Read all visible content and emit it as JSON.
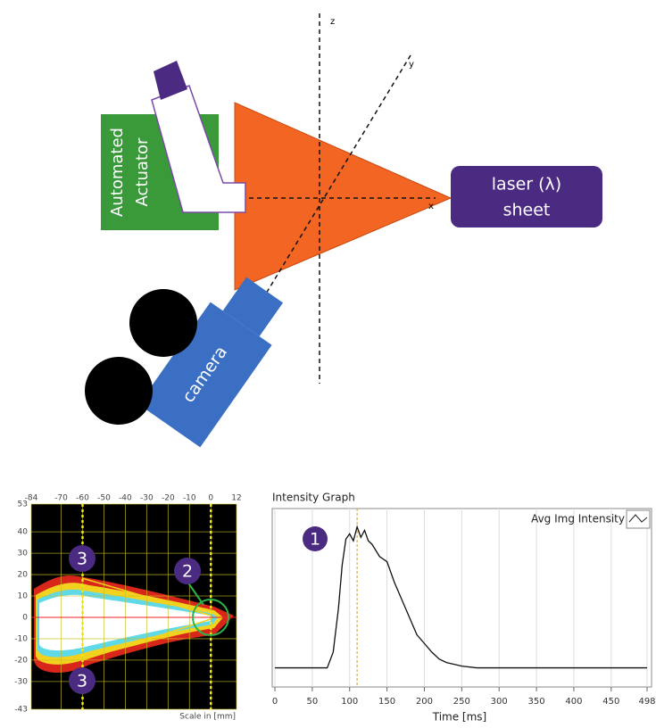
{
  "diagram": {
    "axes": {
      "z": "z",
      "y": "y",
      "x": "x"
    },
    "laser": [
      "laser (λ)",
      "sheet"
    ],
    "actuator": [
      "Automated",
      "Actuator"
    ],
    "camera": "camera"
  },
  "spray_image": {
    "xticks": [
      -84,
      -70,
      -60,
      -50,
      -40,
      -30,
      -20,
      -10,
      0,
      12
    ],
    "yticks": [
      53,
      40,
      30,
      20,
      10,
      0,
      -10,
      -20,
      -30,
      -43
    ],
    "scale_label": "Scale in [mm]",
    "markers": [
      "3",
      "2",
      "3"
    ],
    "guide_lines": [
      -60,
      0
    ]
  },
  "intensity_graph": {
    "title": "Intensity Graph",
    "legend": "Avg Img Intensity",
    "annotation": "1",
    "x_label": "Time [ms]",
    "xticks": [
      0,
      50,
      100,
      150,
      200,
      250,
      300,
      350,
      400,
      450,
      498
    ],
    "xlim": [
      0,
      498
    ],
    "ylim": [
      0,
      100
    ],
    "time": [
      0,
      70,
      78,
      85,
      90,
      95,
      100,
      105,
      110,
      115,
      120,
      125,
      130,
      140,
      150,
      160,
      170,
      180,
      190,
      200,
      210,
      220,
      230,
      240,
      250,
      270,
      300,
      350,
      400,
      450,
      498
    ],
    "intensity": [
      11,
      11,
      20,
      45,
      70,
      85,
      88,
      84,
      92,
      86,
      90,
      84,
      82,
      75,
      72,
      60,
      50,
      40,
      30,
      25,
      20,
      16,
      14,
      13,
      12,
      11,
      11,
      11,
      11,
      11,
      11
    ],
    "marker_time": 110
  }
}
